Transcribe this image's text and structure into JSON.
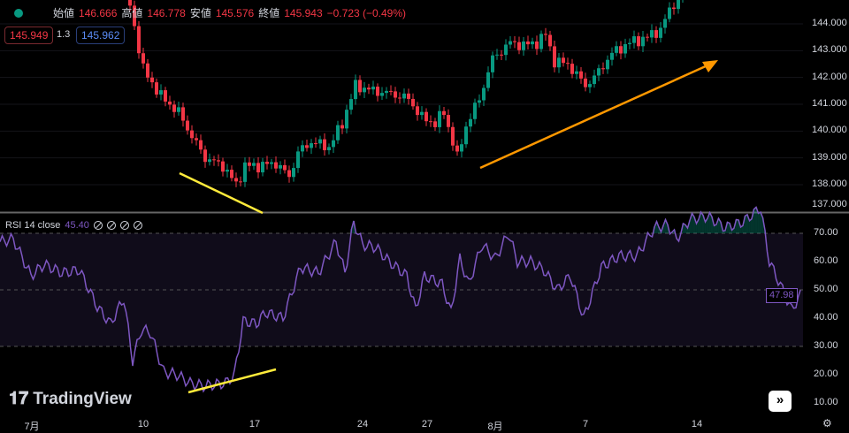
{
  "legend": {
    "open_label": "始値",
    "open": "146.666",
    "high_label": "高値",
    "high": "146.778",
    "low_label": "安値",
    "low": "145.576",
    "close_label": "終値",
    "close": "145.943",
    "change": "−0.723 (−0.49%)",
    "sell": "145.949",
    "spread": "1.3",
    "buy": "145.962"
  },
  "rsi": {
    "title": "RSI 14 close",
    "value": "45.40",
    "last": "47.98"
  },
  "logo": "TradingView",
  "colors": {
    "up": "#089981",
    "down": "#f23645",
    "rsi": "#7e57c2",
    "yellow": "#ffeb3b",
    "orange": "#ff9800"
  },
  "price_axis": [
    "144.000",
    "143.000",
    "142.000",
    "141.000",
    "140.000",
    "139.000",
    "138.000",
    "137.000"
  ],
  "rsi_axis": [
    "70.00",
    "60.00",
    "50.00",
    "40.00",
    "30.00",
    "20.00",
    "10.00"
  ],
  "time_axis": [
    "7月",
    "10",
    "17",
    "24",
    "27",
    "8月",
    "7",
    "14"
  ],
  "chart_data": {
    "type": "candlestick",
    "price_keypoints": [
      [
        0,
        146.5
      ],
      [
        28,
        145.5
      ],
      [
        32,
        142.3
      ],
      [
        36,
        141.3
      ],
      [
        40,
        140.7
      ],
      [
        43,
        139.8
      ],
      [
        46,
        139.0
      ],
      [
        50,
        138.7
      ],
      [
        53,
        138.0
      ],
      [
        55,
        138.7
      ],
      [
        58,
        138.7
      ],
      [
        62,
        138.8
      ],
      [
        65,
        138.3
      ],
      [
        67,
        139.2
      ],
      [
        70,
        139.6
      ],
      [
        74,
        139.4
      ],
      [
        77,
        140.3
      ],
      [
        80,
        141.7
      ],
      [
        84,
        141.5
      ],
      [
        88,
        141.4
      ],
      [
        92,
        141.2
      ],
      [
        95,
        140.5
      ],
      [
        98,
        140.3
      ],
      [
        100,
        140.7
      ],
      [
        102,
        139.6
      ],
      [
        103,
        139.0
      ],
      [
        105,
        140.2
      ],
      [
        108,
        141.2
      ],
      [
        111,
        142.7
      ],
      [
        115,
        143.3
      ],
      [
        118,
        143.2
      ],
      [
        121,
        143.3
      ],
      [
        123,
        143.6
      ],
      [
        125,
        142.6
      ],
      [
        128,
        142.5
      ],
      [
        132,
        141.7
      ],
      [
        134,
        142.0
      ],
      [
        138,
        142.9
      ],
      [
        142,
        143.3
      ],
      [
        146,
        143.5
      ],
      [
        149,
        143.8
      ],
      [
        151,
        144.5
      ],
      [
        154,
        145.2
      ],
      [
        159,
        145.4
      ]
    ],
    "rsi_keypoints": [
      [
        0,
        67
      ],
      [
        3,
        68
      ],
      [
        7,
        55
      ],
      [
        10,
        59
      ],
      [
        14,
        56
      ],
      [
        18,
        57
      ],
      [
        22,
        44
      ],
      [
        25,
        38
      ],
      [
        28,
        47
      ],
      [
        30,
        25
      ],
      [
        32,
        36
      ],
      [
        34,
        35
      ],
      [
        37,
        21
      ],
      [
        40,
        20
      ],
      [
        43,
        17
      ],
      [
        46,
        16
      ],
      [
        51,
        17
      ],
      [
        53,
        20
      ],
      [
        55,
        39
      ],
      [
        58,
        38
      ],
      [
        60,
        42
      ],
      [
        64,
        40
      ],
      [
        68,
        58
      ],
      [
        72,
        56
      ],
      [
        76,
        67
      ],
      [
        78,
        56
      ],
      [
        80,
        74
      ],
      [
        82,
        66
      ],
      [
        85,
        65
      ],
      [
        88,
        60
      ],
      [
        92,
        55
      ],
      [
        94,
        43
      ],
      [
        96,
        55
      ],
      [
        100,
        52
      ],
      [
        102,
        42
      ],
      [
        104,
        61
      ],
      [
        106,
        52
      ],
      [
        109,
        66
      ],
      [
        112,
        61
      ],
      [
        115,
        70
      ],
      [
        117,
        60
      ],
      [
        120,
        60
      ],
      [
        123,
        57
      ],
      [
        126,
        50
      ],
      [
        129,
        55
      ],
      [
        132,
        40
      ],
      [
        136,
        58
      ],
      [
        140,
        62
      ],
      [
        144,
        62
      ],
      [
        148,
        72
      ],
      [
        151,
        73
      ],
      [
        153,
        68
      ],
      [
        156,
        75
      ],
      [
        160,
        76
      ],
      [
        164,
        72
      ],
      [
        168,
        74
      ],
      [
        172,
        79
      ],
      [
        174,
        60
      ],
      [
        177,
        50
      ],
      [
        179,
        43
      ],
      [
        181,
        48
      ]
    ],
    "price_range": [
      137,
      144.8
    ],
    "rsi_range": [
      0,
      100
    ]
  }
}
